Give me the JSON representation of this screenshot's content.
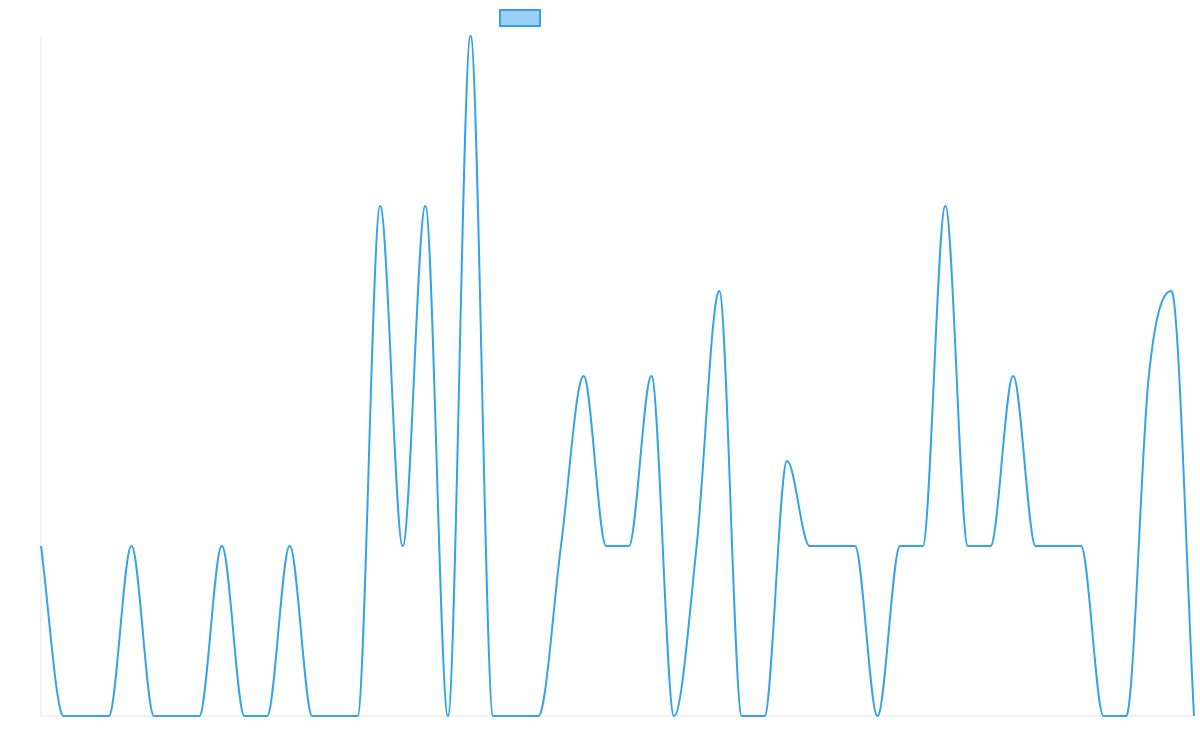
{
  "chart_data": {
    "type": "line",
    "series": [
      {
        "color": "#36a2eb",
        "legend_fill": "#9ad0f5",
        "values": [
          1,
          0,
          0,
          0,
          1,
          0,
          0,
          0,
          1,
          0,
          0,
          1,
          0,
          0,
          0,
          3,
          1,
          3,
          0,
          4,
          0,
          0,
          0,
          1,
          2,
          1,
          1,
          2,
          0,
          1,
          2.5,
          0,
          0,
          1.5,
          1,
          1,
          1,
          0,
          1,
          1,
          3,
          1,
          1,
          2,
          1,
          1,
          1,
          0,
          0,
          2,
          2.5,
          0
        ]
      }
    ],
    "ylim": [
      0,
      4
    ],
    "interpolation": "monotone",
    "legend": "top"
  }
}
